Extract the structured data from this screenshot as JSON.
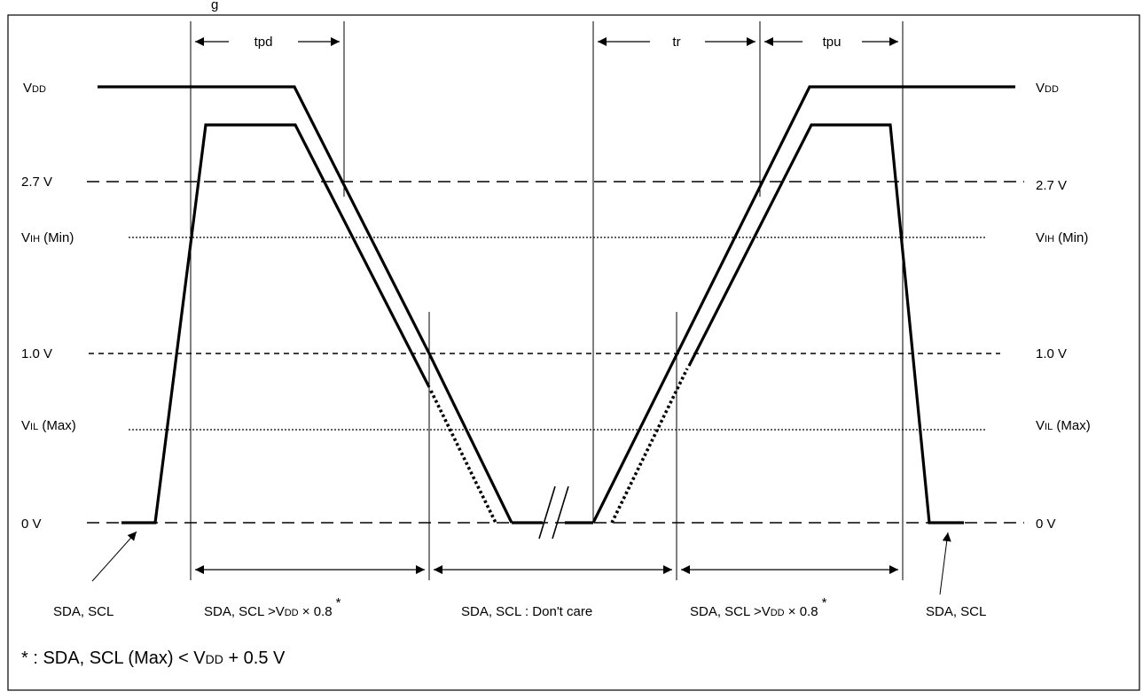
{
  "header_fragment": "g",
  "top_dimensions": {
    "tpd": "tpd",
    "tr": "tr",
    "tpu": "tpu"
  },
  "levels_left": {
    "vdd_main": "V",
    "vdd_sub": "DD",
    "v27": "2.7 V",
    "vih_main": "V",
    "vih_sub": "IH",
    "vih_tail": " (Min)",
    "v10": "1.0 V",
    "vil_main": "V",
    "vil_sub": "IL",
    "vil_tail": " (Max)",
    "v0": "0 V"
  },
  "levels_right": {
    "vdd_main": "V",
    "vdd_sub": "DD",
    "v27": "2.7 V",
    "vih_main": "V",
    "vih_sub": "IH",
    "vih_tail": " (Min)",
    "v10": "1.0 V",
    "vil_main": "V",
    "vil_sub": "IL",
    "vil_tail": " (Max)",
    "v0": "0 V"
  },
  "bottom_labels": {
    "sda_scl_left": "SDA, SCL",
    "cond1_a": "SDA, SCL >V",
    "cond1_sub": "DD",
    "cond1_b": " × 0.8",
    "cond1_ast": "*",
    "dont_care": "SDA, SCL : Don't care",
    "cond2_a": "SDA, SCL >V",
    "cond2_sub": "DD",
    "cond2_b": " × 0.8",
    "cond2_ast": "*",
    "sda_scl_right": "SDA, SCL"
  },
  "footnote": {
    "a": "* : SDA, SCL (Max) < V",
    "sub": "DD",
    "b": " + 0.5 V"
  }
}
